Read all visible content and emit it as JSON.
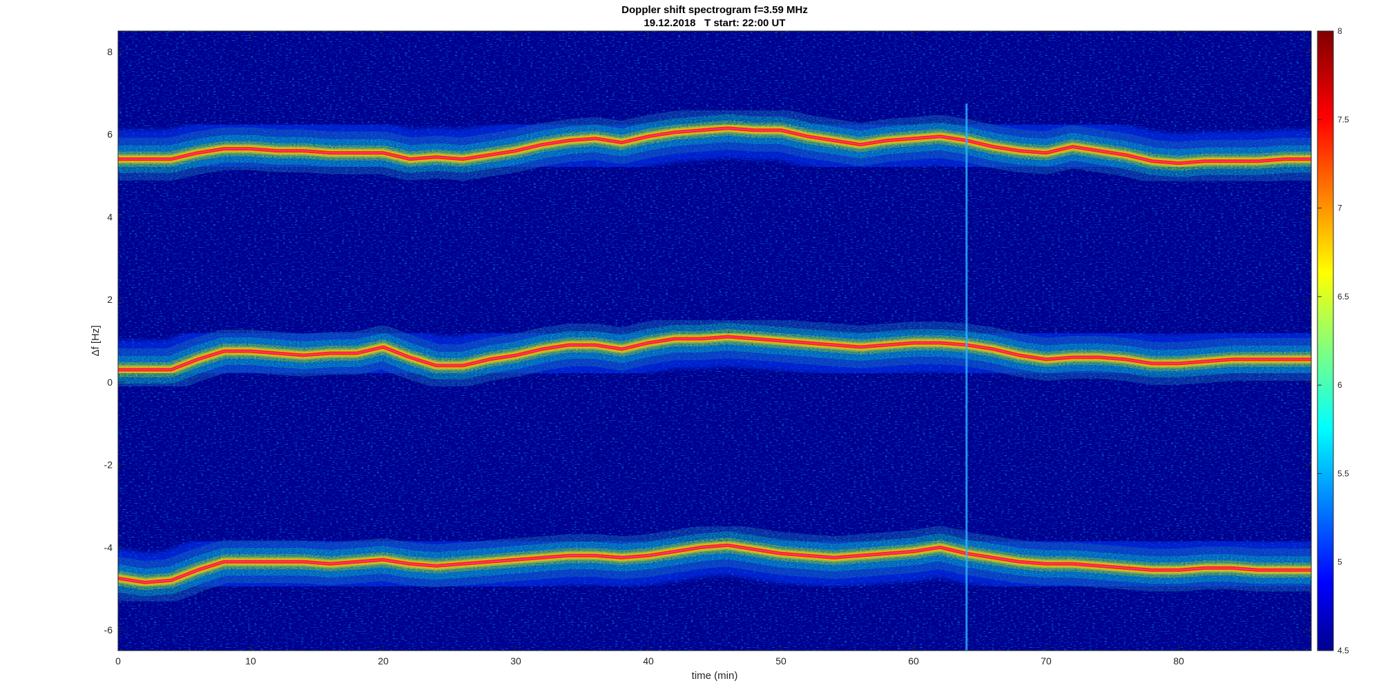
{
  "chart_data": {
    "type": "heatmap",
    "title": "Doppler shift spectrogram f=3.59 MHz",
    "subtitle": "19.12.2018   T start: 22:00 UT",
    "xlabel": "time (min)",
    "ylabel": "Δf [Hz]",
    "xlim": [
      0,
      90
    ],
    "ylim": [
      -6.5,
      8.5
    ],
    "x_ticks": [
      "0",
      "10",
      "20",
      "30",
      "40",
      "50",
      "60",
      "70",
      "80"
    ],
    "y_ticks": [
      "-6",
      "-4",
      "-2",
      "0",
      "2",
      "4",
      "6",
      "8"
    ],
    "colorbar": {
      "colormap": "jet",
      "range": [
        4.5,
        8
      ],
      "ticks": [
        "4.5",
        "5",
        "5.5",
        "6",
        "6.5",
        "7",
        "7.5",
        "8"
      ]
    },
    "grid": false,
    "interference_line_x": 64,
    "traces": [
      {
        "x": [
          0,
          2,
          4,
          6,
          8,
          10,
          12,
          14,
          16,
          18,
          20,
          22,
          24,
          26,
          28,
          30,
          32,
          34,
          36,
          38,
          40,
          42,
          44,
          46,
          48,
          50,
          52,
          54,
          56,
          58,
          60,
          62,
          64,
          66,
          68,
          70,
          72,
          74,
          76,
          78,
          80,
          82,
          84,
          86,
          88,
          90
        ],
        "y": [
          5.4,
          5.4,
          5.4,
          5.55,
          5.65,
          5.65,
          5.6,
          5.6,
          5.55,
          5.55,
          5.55,
          5.4,
          5.45,
          5.4,
          5.5,
          5.6,
          5.75,
          5.85,
          5.9,
          5.8,
          5.95,
          6.05,
          6.1,
          6.15,
          6.1,
          6.1,
          5.95,
          5.85,
          5.75,
          5.85,
          5.9,
          5.95,
          5.85,
          5.7,
          5.6,
          5.55,
          5.7,
          5.6,
          5.5,
          5.35,
          5.3,
          5.35,
          5.35,
          5.35,
          5.4,
          5.4
        ]
      },
      {
        "x": [
          0,
          2,
          4,
          6,
          8,
          10,
          12,
          14,
          16,
          18,
          20,
          22,
          24,
          26,
          28,
          30,
          32,
          34,
          36,
          38,
          40,
          42,
          44,
          46,
          48,
          50,
          52,
          54,
          56,
          58,
          60,
          62,
          64,
          66,
          68,
          70,
          72,
          74,
          76,
          78,
          80,
          82,
          84,
          86,
          88,
          90
        ],
        "y": [
          0.3,
          0.3,
          0.3,
          0.55,
          0.75,
          0.75,
          0.7,
          0.65,
          0.7,
          0.7,
          0.85,
          0.6,
          0.4,
          0.4,
          0.55,
          0.65,
          0.8,
          0.9,
          0.9,
          0.8,
          0.95,
          1.05,
          1.05,
          1.1,
          1.05,
          1.0,
          0.95,
          0.9,
          0.85,
          0.9,
          0.95,
          0.95,
          0.9,
          0.8,
          0.65,
          0.55,
          0.6,
          0.6,
          0.55,
          0.45,
          0.45,
          0.5,
          0.55,
          0.55,
          0.55,
          0.55
        ]
      },
      {
        "x": [
          0,
          2,
          4,
          6,
          8,
          10,
          12,
          14,
          16,
          18,
          20,
          22,
          24,
          26,
          28,
          30,
          32,
          34,
          36,
          38,
          40,
          42,
          44,
          46,
          48,
          50,
          52,
          54,
          56,
          58,
          60,
          62,
          64,
          66,
          68,
          70,
          72,
          74,
          76,
          78,
          80,
          82,
          84,
          86,
          88,
          90
        ],
        "y": [
          -4.75,
          -4.85,
          -4.8,
          -4.55,
          -4.35,
          -4.35,
          -4.35,
          -4.35,
          -4.4,
          -4.35,
          -4.3,
          -4.4,
          -4.45,
          -4.4,
          -4.35,
          -4.3,
          -4.25,
          -4.2,
          -4.2,
          -4.25,
          -4.2,
          -4.1,
          -4.0,
          -3.95,
          -4.05,
          -4.15,
          -4.2,
          -4.25,
          -4.2,
          -4.15,
          -4.1,
          -4.0,
          -4.15,
          -4.25,
          -4.35,
          -4.4,
          -4.4,
          -4.45,
          -4.5,
          -4.55,
          -4.55,
          -4.5,
          -4.5,
          -4.55,
          -4.55,
          -4.55
        ]
      }
    ]
  }
}
